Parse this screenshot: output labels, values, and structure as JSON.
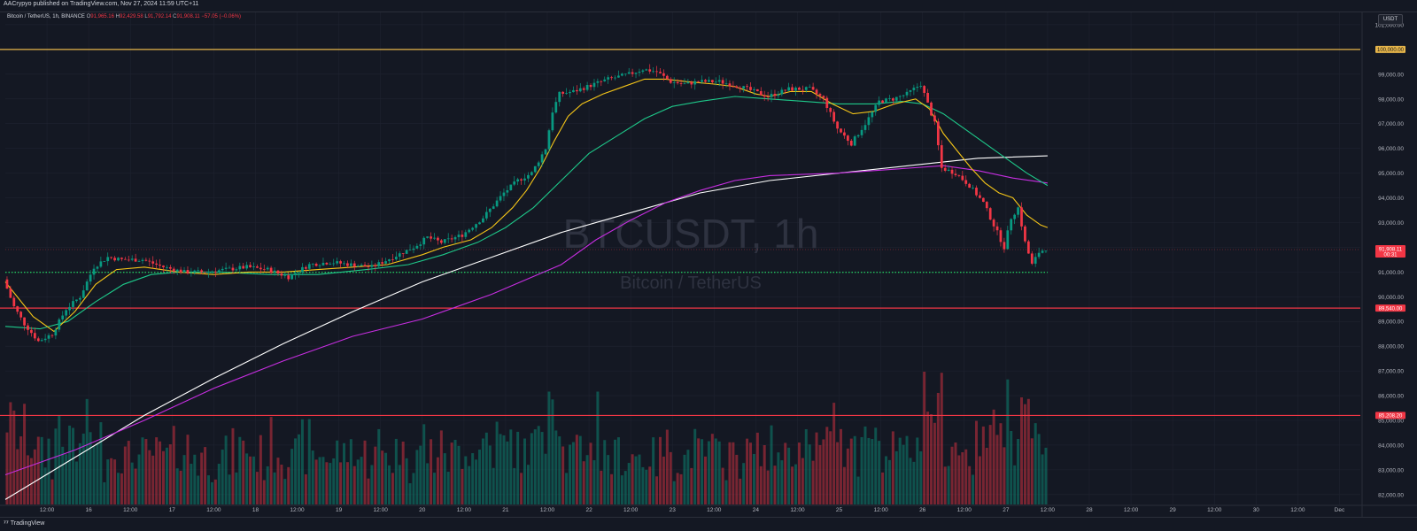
{
  "header": {
    "publisher_text": "AACrypyo published on TradingView.com, Nov 27, 2024 11:59 UTC+11"
  },
  "legend": {
    "symbol_text": "Bitcoin / TetherUS, 1h, BINANCE",
    "open_label": "O",
    "open": "91,965.16",
    "high_label": "H",
    "high": "92,429.58",
    "low_label": "L",
    "low": "91,792.14",
    "close_label": "C",
    "close": "91,908.11",
    "change": "−57.05 (−0.06%)"
  },
  "currency_label": "USDT",
  "watermark": {
    "symbol": "BTCUSDT, 1h",
    "name": "Bitcoin / TetherUS"
  },
  "footer": {
    "logo_text": "TradingView"
  },
  "colors": {
    "background": "#141823",
    "grid": "#1f2330",
    "up": "#089981",
    "down": "#f23645",
    "ema_fast": "#f5c518",
    "ema_mid": "#1ec98a",
    "ema_slow": "#ffffff",
    "sma_slow": "#c62ee0",
    "hline_gold": "#e6b54a",
    "hline_red": "#f23645",
    "dotted": "#22c55e"
  },
  "chart_data": {
    "type": "candlestick",
    "timeframe": "1h",
    "y_axis": {
      "min": 81600,
      "max": 101500,
      "ticks": [
        101000,
        100000,
        99000,
        98000,
        97000,
        96000,
        95000,
        94000,
        93000,
        92000,
        91000,
        90000,
        89000,
        88000,
        87000,
        86000,
        85000,
        84000,
        83000,
        82000
      ],
      "tick_labels": [
        "101,000.00",
        "100,000.00",
        "99,000.00",
        "98,000.00",
        "97,000.00",
        "96,000.00",
        "95,000.00",
        "94,000.00",
        "93,000.00",
        "92,000.00",
        "91,000.00",
        "90,000.00",
        "89,000.00",
        "88,000.00",
        "87,000.00",
        "86,000.00",
        "85,000.00",
        "84,000.00",
        "83,000.00",
        "82,000.00"
      ]
    },
    "x_axis": {
      "labels": [
        "12:00",
        "16",
        "12:00",
        "17",
        "12:00",
        "18",
        "12:00",
        "19",
        "12:00",
        "20",
        "12:00",
        "21",
        "12:00",
        "22",
        "12:00",
        "23",
        "12:00",
        "24",
        "12:00",
        "25",
        "12:00",
        "26",
        "12:00",
        "27",
        "12:00",
        "28",
        "12:00",
        "29",
        "12:00",
        "30",
        "12:00",
        "Dec"
      ],
      "label_hours": [
        12,
        24,
        36,
        48,
        60,
        72,
        84,
        96,
        108,
        120,
        132,
        144,
        156,
        168,
        180,
        192,
        204,
        216,
        228,
        240,
        252,
        264,
        276,
        288,
        300,
        312,
        324,
        336,
        348,
        360,
        372,
        384
      ],
      "total_hours": 390,
      "data_hours": 300
    },
    "price_path": [
      [
        0,
        90700
      ],
      [
        3,
        89600
      ],
      [
        6,
        88900
      ],
      [
        10,
        88200
      ],
      [
        14,
        88500
      ],
      [
        18,
        89500
      ],
      [
        22,
        90000
      ],
      [
        26,
        91200
      ],
      [
        30,
        91600
      ],
      [
        34,
        91500
      ],
      [
        40,
        91500
      ],
      [
        46,
        91200
      ],
      [
        52,
        91000
      ],
      [
        58,
        91000
      ],
      [
        64,
        91100
      ],
      [
        70,
        91200
      ],
      [
        76,
        91100
      ],
      [
        82,
        90800
      ],
      [
        88,
        91300
      ],
      [
        94,
        91400
      ],
      [
        100,
        91300
      ],
      [
        106,
        91200
      ],
      [
        112,
        91600
      ],
      [
        118,
        92000
      ],
      [
        122,
        92400
      ],
      [
        126,
        92200
      ],
      [
        132,
        92500
      ],
      [
        138,
        93200
      ],
      [
        144,
        94200
      ],
      [
        148,
        94700
      ],
      [
        152,
        95000
      ],
      [
        156,
        96000
      ],
      [
        158,
        97500
      ],
      [
        160,
        98200
      ],
      [
        164,
        98300
      ],
      [
        168,
        98500
      ],
      [
        174,
        98800
      ],
      [
        180,
        99000
      ],
      [
        184,
        99200
      ],
      [
        188,
        99100
      ],
      [
        192,
        98700
      ],
      [
        196,
        98600
      ],
      [
        200,
        98700
      ],
      [
        206,
        98700
      ],
      [
        212,
        98500
      ],
      [
        216,
        98300
      ],
      [
        220,
        98100
      ],
      [
        226,
        98400
      ],
      [
        232,
        98400
      ],
      [
        236,
        98000
      ],
      [
        240,
        96800
      ],
      [
        244,
        96200
      ],
      [
        248,
        97000
      ],
      [
        252,
        97900
      ],
      [
        256,
        98000
      ],
      [
        260,
        98200
      ],
      [
        264,
        98600
      ],
      [
        268,
        97000
      ],
      [
        270,
        95200
      ],
      [
        274,
        95000
      ],
      [
        278,
        94500
      ],
      [
        282,
        93800
      ],
      [
        286,
        92600
      ],
      [
        288,
        92000
      ],
      [
        290,
        93200
      ],
      [
        292,
        93600
      ],
      [
        294,
        92200
      ],
      [
        296,
        91300
      ],
      [
        298,
        91800
      ],
      [
        300,
        91950
      ]
    ],
    "ema_fast": [
      [
        0,
        90600
      ],
      [
        8,
        89200
      ],
      [
        14,
        88600
      ],
      [
        20,
        89400
      ],
      [
        26,
        90500
      ],
      [
        32,
        91100
      ],
      [
        40,
        91200
      ],
      [
        50,
        91000
      ],
      [
        60,
        90900
      ],
      [
        70,
        91000
      ],
      [
        80,
        91000
      ],
      [
        90,
        91100
      ],
      [
        100,
        91200
      ],
      [
        110,
        91300
      ],
      [
        120,
        91700
      ],
      [
        126,
        92000
      ],
      [
        134,
        92300
      ],
      [
        140,
        92800
      ],
      [
        146,
        93600
      ],
      [
        150,
        94300
      ],
      [
        154,
        95200
      ],
      [
        158,
        96300
      ],
      [
        162,
        97300
      ],
      [
        166,
        97800
      ],
      [
        172,
        98200
      ],
      [
        178,
        98500
      ],
      [
        184,
        98800
      ],
      [
        190,
        98800
      ],
      [
        196,
        98700
      ],
      [
        204,
        98600
      ],
      [
        210,
        98500
      ],
      [
        216,
        98200
      ],
      [
        220,
        98100
      ],
      [
        226,
        98300
      ],
      [
        232,
        98300
      ],
      [
        238,
        97800
      ],
      [
        244,
        97400
      ],
      [
        250,
        97500
      ],
      [
        256,
        97800
      ],
      [
        262,
        98000
      ],
      [
        266,
        97600
      ],
      [
        270,
        96600
      ],
      [
        274,
        95900
      ],
      [
        278,
        95200
      ],
      [
        282,
        94600
      ],
      [
        286,
        94200
      ],
      [
        290,
        94000
      ],
      [
        294,
        93300
      ],
      [
        298,
        92900
      ],
      [
        300,
        92800
      ]
    ],
    "ema_mid": [
      [
        0,
        88800
      ],
      [
        10,
        88700
      ],
      [
        18,
        89000
      ],
      [
        26,
        89800
      ],
      [
        34,
        90500
      ],
      [
        42,
        90900
      ],
      [
        50,
        91000
      ],
      [
        62,
        91000
      ],
      [
        76,
        90900
      ],
      [
        90,
        90900
      ],
      [
        104,
        91100
      ],
      [
        116,
        91300
      ],
      [
        126,
        91700
      ],
      [
        136,
        92200
      ],
      [
        144,
        92800
      ],
      [
        152,
        93600
      ],
      [
        160,
        94700
      ],
      [
        168,
        95800
      ],
      [
        176,
        96500
      ],
      [
        184,
        97200
      ],
      [
        192,
        97700
      ],
      [
        200,
        97900
      ],
      [
        210,
        98100
      ],
      [
        220,
        98000
      ],
      [
        230,
        97900
      ],
      [
        240,
        97800
      ],
      [
        250,
        97800
      ],
      [
        258,
        97900
      ],
      [
        264,
        97800
      ],
      [
        270,
        97400
      ],
      [
        276,
        96800
      ],
      [
        282,
        96200
      ],
      [
        288,
        95600
      ],
      [
        294,
        95000
      ],
      [
        300,
        94500
      ]
    ],
    "ema_slow": [
      [
        0,
        81800
      ],
      [
        20,
        83500
      ],
      [
        40,
        85200
      ],
      [
        60,
        86700
      ],
      [
        80,
        88100
      ],
      [
        100,
        89400
      ],
      [
        120,
        90600
      ],
      [
        140,
        91600
      ],
      [
        160,
        92600
      ],
      [
        180,
        93400
      ],
      [
        200,
        94200
      ],
      [
        220,
        94700
      ],
      [
        240,
        95000
      ],
      [
        260,
        95300
      ],
      [
        280,
        95600
      ],
      [
        300,
        95700
      ]
    ],
    "sma_slow": [
      [
        0,
        82800
      ],
      [
        20,
        83800
      ],
      [
        40,
        85000
      ],
      [
        60,
        86300
      ],
      [
        80,
        87400
      ],
      [
        100,
        88400
      ],
      [
        120,
        89100
      ],
      [
        140,
        90100
      ],
      [
        160,
        91300
      ],
      [
        170,
        92300
      ],
      [
        180,
        93100
      ],
      [
        190,
        93800
      ],
      [
        200,
        94300
      ],
      [
        210,
        94700
      ],
      [
        220,
        94900
      ],
      [
        240,
        95000
      ],
      [
        260,
        95200
      ],
      [
        270,
        95300
      ],
      [
        280,
        95100
      ],
      [
        290,
        94800
      ],
      [
        300,
        94600
      ]
    ],
    "horizontal_levels": [
      {
        "price": 100000,
        "label": "100,000.00",
        "style": "gold"
      },
      {
        "price": 89540,
        "label": "89,540.00",
        "style": "red"
      },
      {
        "price": 85200,
        "label": "85,208.20",
        "style": "red"
      },
      {
        "price": 90990,
        "label": "",
        "style": "dotted"
      }
    ],
    "current_price": {
      "price": 91908.11,
      "label": "91,908.11",
      "countdown": "00:31"
    },
    "volume_max": 1
  }
}
